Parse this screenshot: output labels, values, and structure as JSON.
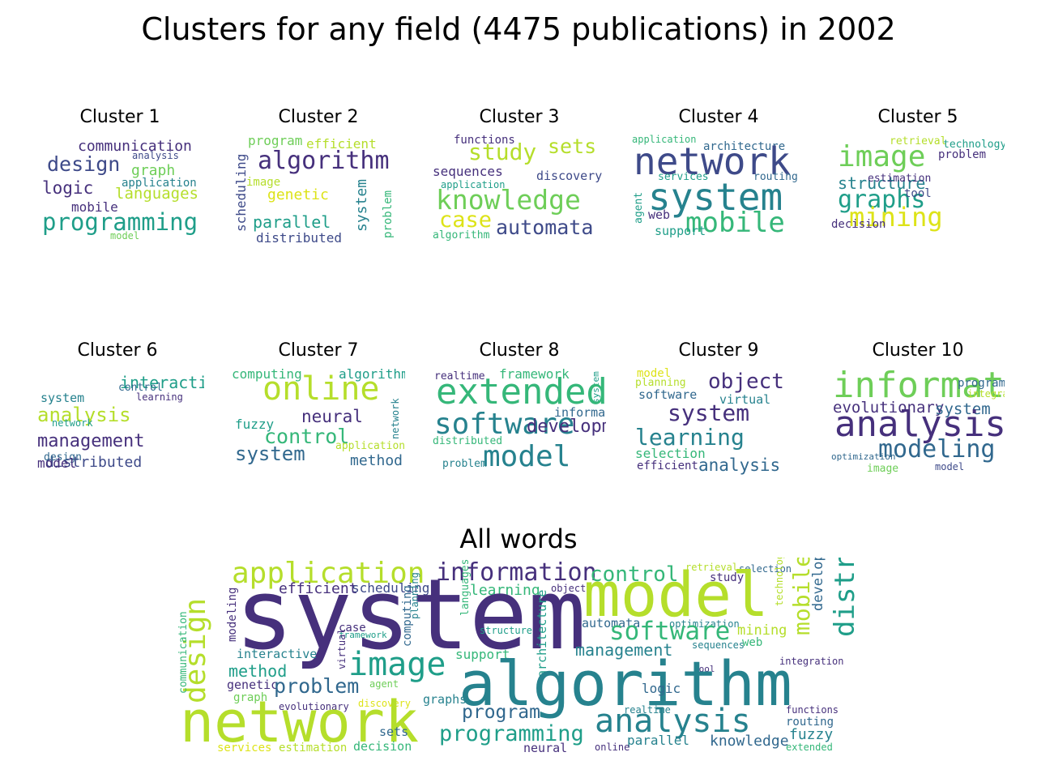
{
  "title": "Clusters for any field (4475 publications) in 2002",
  "palette": {
    "purple": "#46307c",
    "indigo": "#3e4a89",
    "blue": "#31688e",
    "teal": "#26828e",
    "green": "#1f9e89",
    "lightgreen": "#35b779",
    "lime": "#6ece58",
    "yellowgreen": "#b5de2b",
    "yellow": "#dde318"
  },
  "clusters": [
    {
      "title": "Cluster 1",
      "words": [
        {
          "text": "communication",
          "color": "#46307c"
        },
        {
          "text": "analysis",
          "color": "#3e4a89"
        },
        {
          "text": "design",
          "color": "#3e4a89"
        },
        {
          "text": "graph",
          "color": "#6ece58"
        },
        {
          "text": "application",
          "color": "#26828e"
        },
        {
          "text": "logic",
          "color": "#46307c"
        },
        {
          "text": "languages",
          "color": "#b5de2b"
        },
        {
          "text": "mobile",
          "color": "#46307c"
        },
        {
          "text": "programming",
          "color": "#1f9e89"
        },
        {
          "text": "model",
          "color": "#6ece58"
        }
      ]
    },
    {
      "title": "Cluster 2",
      "words": [
        {
          "text": "program",
          "color": "#6ece58"
        },
        {
          "text": "efficient",
          "color": "#b5de2b"
        },
        {
          "text": "scheduling",
          "color": "#3e4a89"
        },
        {
          "text": "algorithm",
          "color": "#46307c"
        },
        {
          "text": "image",
          "color": "#b5de2b"
        },
        {
          "text": "genetic",
          "color": "#dde318"
        },
        {
          "text": "system",
          "color": "#26828e"
        },
        {
          "text": "problem",
          "color": "#35b779"
        },
        {
          "text": "parallel",
          "color": "#1f9e89"
        },
        {
          "text": "distributed",
          "color": "#3e4a89"
        }
      ]
    },
    {
      "title": "Cluster 3",
      "words": [
        {
          "text": "functions",
          "color": "#46307c"
        },
        {
          "text": "study",
          "color": "#b5de2b"
        },
        {
          "text": "sets",
          "color": "#b5de2b"
        },
        {
          "text": "sequences",
          "color": "#46307c"
        },
        {
          "text": "discovery",
          "color": "#3e4a89"
        },
        {
          "text": "application",
          "color": "#1f9e89"
        },
        {
          "text": "knowledge",
          "color": "#6ece58"
        },
        {
          "text": "case",
          "color": "#dde318"
        },
        {
          "text": "automata",
          "color": "#3e4a89"
        },
        {
          "text": "algorithm",
          "color": "#35b779"
        }
      ]
    },
    {
      "title": "Cluster 4",
      "words": [
        {
          "text": "application",
          "color": "#35b779"
        },
        {
          "text": "architecture",
          "color": "#31688e"
        },
        {
          "text": "network",
          "color": "#3e4a89"
        },
        {
          "text": "agent",
          "color": "#1f9e89"
        },
        {
          "text": "services",
          "color": "#1f9e89"
        },
        {
          "text": "routing",
          "color": "#31688e"
        },
        {
          "text": "system",
          "color": "#26828e"
        },
        {
          "text": "web",
          "color": "#46307c"
        },
        {
          "text": "mobile",
          "color": "#35b779"
        },
        {
          "text": "support",
          "color": "#1f9e89"
        }
      ]
    },
    {
      "title": "Cluster 5",
      "words": [
        {
          "text": "retrieval",
          "color": "#b5de2b"
        },
        {
          "text": "technology",
          "color": "#1f9e89"
        },
        {
          "text": "image",
          "color": "#6ece58"
        },
        {
          "text": "problem",
          "color": "#46307c"
        },
        {
          "text": "structure",
          "color": "#26828e"
        },
        {
          "text": "estimation",
          "color": "#46307c"
        },
        {
          "text": "graphs",
          "color": "#1f9e89"
        },
        {
          "text": "tool",
          "color": "#3e4a89"
        },
        {
          "text": "mining",
          "color": "#dde318"
        },
        {
          "text": "decision",
          "color": "#46307c"
        }
      ]
    },
    {
      "title": "Cluster 6",
      "words": [
        {
          "text": "interactive",
          "color": "#1f9e89"
        },
        {
          "text": "control",
          "color": "#31688e"
        },
        {
          "text": "system",
          "color": "#26828e"
        },
        {
          "text": "learning",
          "color": "#46307c"
        },
        {
          "text": "analysis",
          "color": "#b5de2b"
        },
        {
          "text": "network",
          "color": "#1f9e89"
        },
        {
          "text": "management",
          "color": "#46307c"
        },
        {
          "text": "distributed",
          "color": "#3e4a89"
        },
        {
          "text": "design",
          "color": "#31688e"
        },
        {
          "text": "model",
          "color": "#46307c"
        }
      ]
    },
    {
      "title": "Cluster 7",
      "words": [
        {
          "text": "computing",
          "color": "#35b779"
        },
        {
          "text": "algorithm",
          "color": "#1f9e89"
        },
        {
          "text": "online",
          "color": "#b5de2b"
        },
        {
          "text": "network",
          "color": "#26828e"
        },
        {
          "text": "neural",
          "color": "#46307c"
        },
        {
          "text": "fuzzy",
          "color": "#1f9e89"
        },
        {
          "text": "control",
          "color": "#35b779"
        },
        {
          "text": "application",
          "color": "#b5de2b"
        },
        {
          "text": "system",
          "color": "#31688e"
        },
        {
          "text": "method",
          "color": "#31688e"
        }
      ]
    },
    {
      "title": "Cluster 8",
      "words": [
        {
          "text": "realtime",
          "color": "#46307c"
        },
        {
          "text": "framework",
          "color": "#35b779"
        },
        {
          "text": "system",
          "color": "#1f9e89"
        },
        {
          "text": "extended",
          "color": "#35b779"
        },
        {
          "text": "information",
          "color": "#31688e"
        },
        {
          "text": "software",
          "color": "#26828e"
        },
        {
          "text": "development",
          "color": "#46307c"
        },
        {
          "text": "distributed",
          "color": "#35b779"
        },
        {
          "text": "problem",
          "color": "#26828e"
        },
        {
          "text": "model",
          "color": "#26828e"
        }
      ]
    },
    {
      "title": "Cluster 9",
      "words": [
        {
          "text": "model",
          "color": "#dde318"
        },
        {
          "text": "planning",
          "color": "#b5de2b"
        },
        {
          "text": "object",
          "color": "#46307c"
        },
        {
          "text": "software",
          "color": "#31688e"
        },
        {
          "text": "virtual",
          "color": "#26828e"
        },
        {
          "text": "system",
          "color": "#46307c"
        },
        {
          "text": "learning",
          "color": "#26828e"
        },
        {
          "text": "selection",
          "color": "#35b779"
        },
        {
          "text": "efficient",
          "color": "#46307c"
        },
        {
          "text": "analysis",
          "color": "#31688e"
        }
      ]
    },
    {
      "title": "Cluster 10",
      "words": [
        {
          "text": "information",
          "color": "#6ece58"
        },
        {
          "text": "program",
          "color": "#31688e"
        },
        {
          "text": "integration",
          "color": "#b5de2b"
        },
        {
          "text": "evolutionary",
          "color": "#46307c"
        },
        {
          "text": "system",
          "color": "#31688e"
        },
        {
          "text": "analysis",
          "color": "#46307c"
        },
        {
          "text": "modeling",
          "color": "#31688e"
        },
        {
          "text": "optimization",
          "color": "#31688e"
        },
        {
          "text": "image",
          "color": "#6ece58"
        },
        {
          "text": "model",
          "color": "#3e4a89"
        }
      ]
    }
  ],
  "all_words": {
    "title": "All words",
    "words": [
      {
        "text": "design",
        "color": "#b5de2b"
      },
      {
        "text": "application",
        "color": "#b5de2b"
      },
      {
        "text": "information",
        "color": "#46307c"
      },
      {
        "text": "control",
        "color": "#35b779"
      },
      {
        "text": "retrieval",
        "color": "#b5de2b"
      },
      {
        "text": "selection",
        "color": "#31688e"
      },
      {
        "text": "study",
        "color": "#46307c"
      },
      {
        "text": "mobile",
        "color": "#b5de2b"
      },
      {
        "text": "development",
        "color": "#31688e"
      },
      {
        "text": "distributed",
        "color": "#1f9e89"
      },
      {
        "text": "communication",
        "color": "#35b779"
      },
      {
        "text": "efficient",
        "color": "#46307c"
      },
      {
        "text": "scheduling",
        "color": "#3e4a89"
      },
      {
        "text": "learning",
        "color": "#35b779"
      },
      {
        "text": "object",
        "color": "#46307c"
      },
      {
        "text": "technology",
        "color": "#b5de2b"
      },
      {
        "text": "system",
        "color": "#46307c"
      },
      {
        "text": "model",
        "color": "#b5de2b"
      },
      {
        "text": "modeling",
        "color": "#46307c"
      },
      {
        "text": "languages",
        "color": "#35b779"
      },
      {
        "text": "case",
        "color": "#46307c"
      },
      {
        "text": "framework",
        "color": "#1f9e89"
      },
      {
        "text": "computing",
        "color": "#31688e"
      },
      {
        "text": "planning",
        "color": "#26828e"
      },
      {
        "text": "structure",
        "color": "#1f9e89"
      },
      {
        "text": "architecture",
        "color": "#1f9e89"
      },
      {
        "text": "automata",
        "color": "#31688e"
      },
      {
        "text": "optimization",
        "color": "#26828e"
      },
      {
        "text": "mining",
        "color": "#b5de2b"
      },
      {
        "text": "software",
        "color": "#35b779"
      },
      {
        "text": "web",
        "color": "#35b779"
      },
      {
        "text": "sequences",
        "color": "#26828e"
      },
      {
        "text": "interactive",
        "color": "#26828e"
      },
      {
        "text": "support",
        "color": "#35b779"
      },
      {
        "text": "management",
        "color": "#26828e"
      },
      {
        "text": "image",
        "color": "#1f9e89"
      },
      {
        "text": "integration",
        "color": "#46307c"
      },
      {
        "text": "method",
        "color": "#1f9e89"
      },
      {
        "text": "virtual",
        "color": "#46307c"
      },
      {
        "text": "tool",
        "color": "#46307c"
      },
      {
        "text": "algorithm",
        "color": "#26828e"
      },
      {
        "text": "genetic",
        "color": "#46307c"
      },
      {
        "text": "problem",
        "color": "#31688e"
      },
      {
        "text": "agent",
        "color": "#6ece58"
      },
      {
        "text": "logic",
        "color": "#31688e"
      },
      {
        "text": "graph",
        "color": "#6ece58"
      },
      {
        "text": "evolutionary",
        "color": "#46307c"
      },
      {
        "text": "discovery",
        "color": "#dde318"
      },
      {
        "text": "graphs",
        "color": "#26828e"
      },
      {
        "text": "realtime",
        "color": "#26828e"
      },
      {
        "text": "functions",
        "color": "#46307c"
      },
      {
        "text": "analysis",
        "color": "#26828e"
      },
      {
        "text": "routing",
        "color": "#31688e"
      },
      {
        "text": "program",
        "color": "#31688e"
      },
      {
        "text": "network",
        "color": "#b5de2b"
      },
      {
        "text": "programming",
        "color": "#1f9e89"
      },
      {
        "text": "sets",
        "color": "#31688e"
      },
      {
        "text": "fuzzy",
        "color": "#26828e"
      },
      {
        "text": "parallel",
        "color": "#26828e"
      },
      {
        "text": "knowledge",
        "color": "#31688e"
      },
      {
        "text": "services",
        "color": "#dde318"
      },
      {
        "text": "estimation",
        "color": "#b5de2b"
      },
      {
        "text": "decision",
        "color": "#35b779"
      },
      {
        "text": "neural",
        "color": "#46307c"
      },
      {
        "text": "online",
        "color": "#46307c"
      },
      {
        "text": "extended",
        "color": "#35b779"
      }
    ]
  }
}
